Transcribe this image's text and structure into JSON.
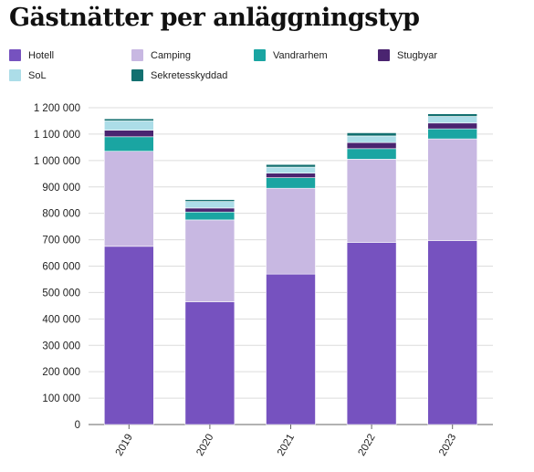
{
  "chart_data": {
    "type": "bar",
    "stacked": true,
    "title": "Gästnätter per anläggningstyp",
    "categories": [
      "2019",
      "2020",
      "2021",
      "2022",
      "2023"
    ],
    "series": [
      {
        "name": "Hotell",
        "color": "#7652bf",
        "values": [
          675000,
          465000,
          570000,
          690000,
          697000
        ]
      },
      {
        "name": "Camping",
        "color": "#c8b8e2",
        "values": [
          360000,
          310000,
          325000,
          315000,
          385000
        ]
      },
      {
        "name": "Vandrarhem",
        "color": "#1aa5a2",
        "values": [
          55000,
          30000,
          40000,
          40000,
          38000
        ]
      },
      {
        "name": "Stugbyar",
        "color": "#4a2470",
        "values": [
          25000,
          15000,
          17000,
          23000,
          22000
        ]
      },
      {
        "name": "SoL",
        "color": "#acdde8",
        "values": [
          35000,
          25000,
          23000,
          25000,
          25000
        ]
      },
      {
        "name": "Sekretesskyddad",
        "color": "#137070",
        "values": [
          8000,
          7000,
          10000,
          12000,
          10000
        ]
      }
    ],
    "ylim": [
      0,
      1200000
    ],
    "yticks": [
      0,
      100000,
      200000,
      300000,
      400000,
      500000,
      600000,
      700000,
      800000,
      900000,
      1000000,
      1100000,
      1200000
    ],
    "ytick_labels": [
      "0",
      "100 000",
      "200 000",
      "300 000",
      "400 000",
      "500 000",
      "600 000",
      "700 000",
      "800 000",
      "900 000",
      "1 000 000",
      "1 100 000",
      "1 200 000"
    ],
    "grid": true,
    "legend_position": "top",
    "xlabel": "",
    "ylabel": ""
  }
}
